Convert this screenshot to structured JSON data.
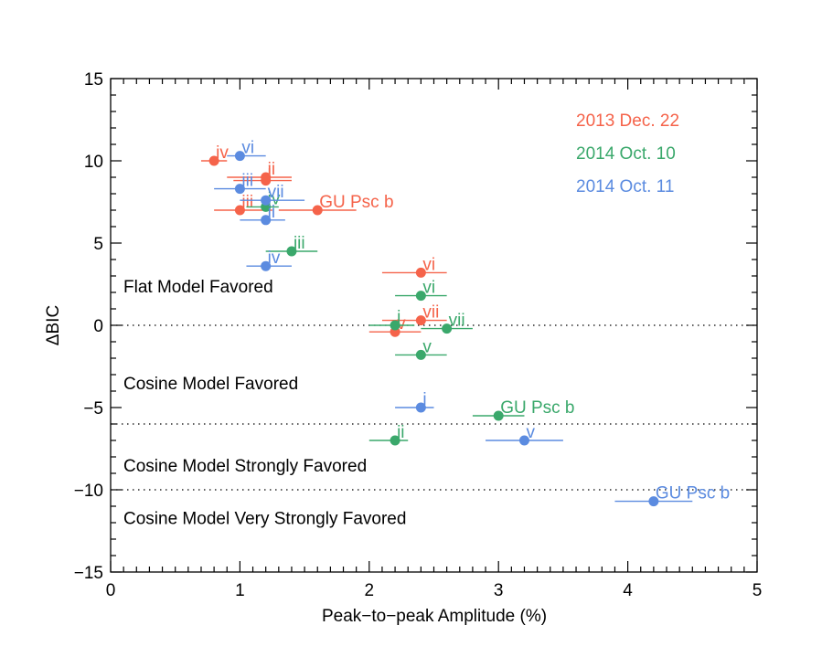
{
  "chart_data": {
    "type": "scatter",
    "xlabel": "Peak−to−peak Amplitude (%)",
    "ylabel": "ΔBIC",
    "xlim": [
      0,
      5
    ],
    "ylim": [
      -15,
      15
    ],
    "x_ticks": [
      {
        "value": 0,
        "label": "0"
      },
      {
        "value": 1,
        "label": "1"
      },
      {
        "value": 2,
        "label": "2"
      },
      {
        "value": 3,
        "label": "3"
      },
      {
        "value": 4,
        "label": "4"
      },
      {
        "value": 5,
        "label": "5"
      }
    ],
    "y_ticks": [
      {
        "value": -15,
        "label": "−15"
      },
      {
        "value": -10,
        "label": "−10"
      },
      {
        "value": -5,
        "label": "−5"
      },
      {
        "value": 0,
        "label": "0"
      },
      {
        "value": 5,
        "label": "5"
      },
      {
        "value": 10,
        "label": "10"
      },
      {
        "value": 15,
        "label": "15"
      }
    ],
    "threshold_lines": [
      0,
      -6,
      -10
    ],
    "region_labels": [
      {
        "text": "Flat Model Favored",
        "y": 2.4
      },
      {
        "text": "Cosine Model Favored",
        "y": -3.5
      },
      {
        "text": "Cosine Model Strongly Favored",
        "y": -8.5
      },
      {
        "text": "Cosine Model Very Strongly Favored",
        "y": -11.7
      }
    ],
    "series": [
      {
        "name": "2013 Dec. 22",
        "color": "#f5634a",
        "points": [
          {
            "label": "iv",
            "x": 0.8,
            "y": 10.0,
            "xerr": [
              0.7,
              0.9
            ]
          },
          {
            "label": "ii",
            "x": 1.2,
            "y": 9.0,
            "xerr": [
              0.9,
              1.4
            ]
          },
          {
            "label": "i",
            "x": 1.2,
            "y": 8.8,
            "xerr": [
              0.95,
              1.4
            ]
          },
          {
            "label": "iii",
            "x": 1.0,
            "y": 7.0,
            "xerr": [
              0.8,
              1.25
            ]
          },
          {
            "label": "GU Psc b",
            "x": 1.6,
            "y": 7.0,
            "xerr": [
              1.3,
              1.9
            ]
          },
          {
            "label": "vi",
            "x": 2.4,
            "y": 3.2,
            "xerr": [
              2.1,
              2.6
            ]
          },
          {
            "label": "vii",
            "x": 2.4,
            "y": 0.3,
            "xerr": [
              2.1,
              2.6
            ]
          },
          {
            "label": "v",
            "x": 2.2,
            "y": -0.4,
            "xerr": [
              2.0,
              2.4
            ]
          }
        ]
      },
      {
        "name": "2014 Oct. 10",
        "color": "#3aa86b",
        "points": [
          {
            "label": "iv",
            "x": 1.2,
            "y": 7.2,
            "xerr": [
              1.05,
              1.3
            ]
          },
          {
            "label": "iii",
            "x": 1.4,
            "y": 4.5,
            "xerr": [
              1.2,
              1.6
            ]
          },
          {
            "label": "vi",
            "x": 2.4,
            "y": 1.8,
            "xerr": [
              2.2,
              2.6
            ]
          },
          {
            "label": "i",
            "x": 2.2,
            "y": 0.0,
            "xerr": [
              2.0,
              2.35
            ]
          },
          {
            "label": "vii",
            "x": 2.6,
            "y": -0.2,
            "xerr": [
              2.4,
              2.8
            ]
          },
          {
            "label": "v",
            "x": 2.4,
            "y": -1.8,
            "xerr": [
              2.2,
              2.6
            ]
          },
          {
            "label": "GU Psc b",
            "x": 3.0,
            "y": -5.5,
            "xerr": [
              2.8,
              3.2
            ]
          },
          {
            "label": "ii",
            "x": 2.2,
            "y": -7.0,
            "xerr": [
              2.0,
              2.3
            ]
          }
        ]
      },
      {
        "name": "2014 Oct. 11",
        "color": "#5b8be0",
        "points": [
          {
            "label": "vi",
            "x": 1.0,
            "y": 10.3,
            "xerr": [
              0.9,
              1.2
            ]
          },
          {
            "label": "iii",
            "x": 1.0,
            "y": 8.3,
            "xerr": [
              0.8,
              1.2
            ]
          },
          {
            "label": "vii",
            "x": 1.2,
            "y": 7.6,
            "xerr": [
              1.0,
              1.5
            ]
          },
          {
            "label": "ii",
            "x": 1.2,
            "y": 6.4,
            "xerr": [
              1.0,
              1.35
            ]
          },
          {
            "label": "iv",
            "x": 1.2,
            "y": 3.6,
            "xerr": [
              1.05,
              1.4
            ]
          },
          {
            "label": "i",
            "x": 2.4,
            "y": -5.0,
            "xerr": [
              2.2,
              2.5
            ]
          },
          {
            "label": "v",
            "x": 3.2,
            "y": -7.0,
            "xerr": [
              2.9,
              3.5
            ]
          },
          {
            "label": "GU Psc b",
            "x": 4.2,
            "y": -10.7,
            "xerr": [
              3.9,
              4.5
            ]
          }
        ]
      }
    ],
    "legend": {
      "placement": "top-right",
      "entries": [
        "2013 Dec. 22",
        "2014 Oct. 10",
        "2014 Oct. 11"
      ]
    }
  }
}
